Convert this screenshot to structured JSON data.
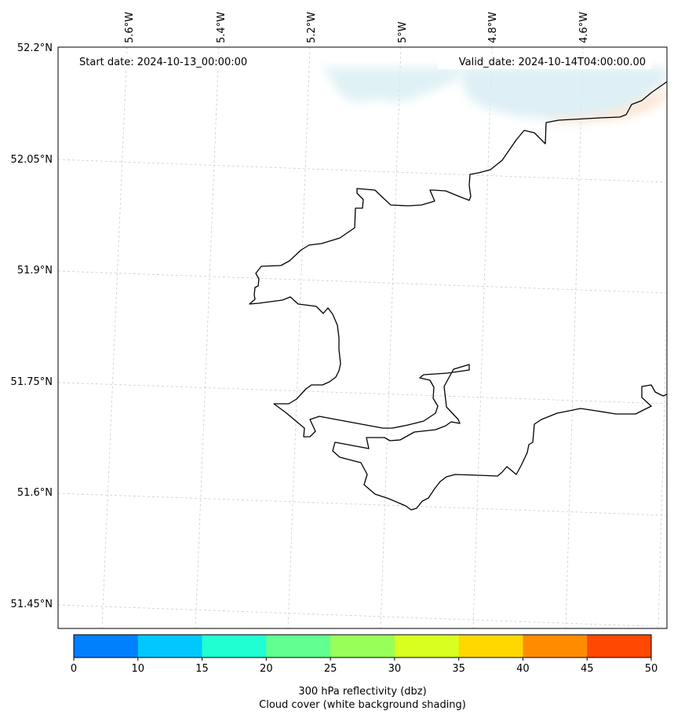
{
  "header": {
    "start_date": "Start date: 2024-10-13_00:00:00",
    "valid_date": "Valid_date: 2024-10-14T04:00:00.00"
  },
  "map": {
    "lon_labels": [
      "5.6°W",
      "5.4°W",
      "5.2°W",
      "5°W",
      "4.8°W",
      "4.6°W"
    ],
    "lat_labels": [
      "52.2°N",
      "52.05°N",
      "51.9°N",
      "51.75°N",
      "51.6°N",
      "51.45°N"
    ],
    "coastline_color": "#000000",
    "gridline_color": "#cccccc",
    "cloud_color": "#d6ecf2",
    "precip_color": "#fbe3cf"
  },
  "colorbar": {
    "ticks": [
      "0",
      "10",
      "15",
      "20",
      "25",
      "30",
      "35",
      "40",
      "45",
      "50"
    ],
    "colors": [
      "#0080ff",
      "#00c8ff",
      "#20ffd2",
      "#60ff90",
      "#98ff58",
      "#d8ff20",
      "#ffd800",
      "#ff8c00",
      "#ff4800"
    ],
    "caption_line1": "300 hPa reflectivity (dbz)",
    "caption_line2": "Cloud cover (white background shading)"
  }
}
